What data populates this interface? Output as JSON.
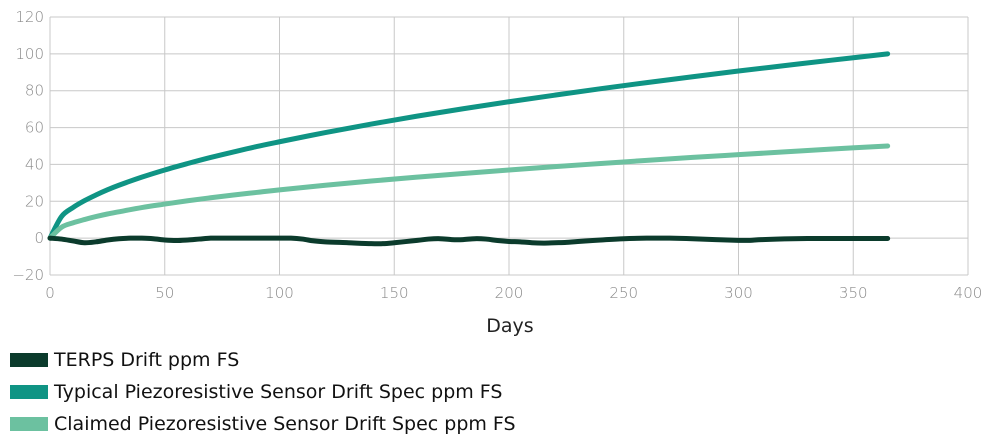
{
  "chart_data": {
    "type": "line",
    "title": "",
    "xlabel": "Days",
    "ylabel": "",
    "xlim": [
      0,
      400
    ],
    "ylim": [
      -20,
      120
    ],
    "xticks": [
      0,
      50,
      100,
      150,
      200,
      250,
      300,
      350,
      400
    ],
    "yticks": [
      -20,
      0,
      20,
      40,
      60,
      80,
      100,
      120
    ],
    "grid": true,
    "legend_position": "bottom-left",
    "series": [
      {
        "name": "TERPS Drift ppm FS",
        "color": "#0b3b2c",
        "x": [
          0,
          5,
          10,
          15,
          20,
          25,
          30,
          35,
          40,
          45,
          50,
          55,
          60,
          65,
          70,
          75,
          80,
          90,
          100,
          105,
          110,
          115,
          120,
          130,
          140,
          145,
          150,
          160,
          165,
          170,
          175,
          180,
          185,
          190,
          195,
          200,
          205,
          210,
          215,
          220,
          225,
          230,
          240,
          250,
          260,
          270,
          280,
          290,
          300,
          305,
          310,
          320,
          330,
          340,
          350,
          360,
          365
        ],
        "y": [
          0,
          -0.5,
          -1.5,
          -2.5,
          -2,
          -1,
          -0.3,
          0,
          0,
          -0.3,
          -1,
          -1.3,
          -1,
          -0.5,
          0,
          0,
          0,
          0,
          0,
          0,
          -0.5,
          -1.5,
          -2,
          -2.5,
          -3,
          -3,
          -2.5,
          -1.2,
          -0.5,
          -0.3,
          -0.8,
          -0.8,
          -0.3,
          -0.5,
          -1.3,
          -1.8,
          -2,
          -2.5,
          -2.7,
          -2.5,
          -2.3,
          -1.8,
          -1,
          -0.3,
          0,
          0,
          -0.3,
          -0.8,
          -1.2,
          -1.2,
          -0.8,
          -0.4,
          -0.2,
          -0.2,
          -0.2,
          -0.2,
          -0.2
        ]
      },
      {
        "name": "Typical Piezoresistive Sensor Drift Spec ppm FS",
        "color": "#0f9484",
        "x": [
          0,
          5,
          10,
          15,
          20,
          25,
          30,
          40,
          50,
          60,
          70,
          80,
          90,
          100,
          120,
          140,
          160,
          180,
          200,
          220,
          240,
          260,
          280,
          300,
          320,
          340,
          365
        ],
        "y": [
          0,
          11.7,
          16.6,
          20.3,
          23.4,
          26.2,
          28.7,
          33.1,
          37.0,
          40.5,
          43.8,
          46.8,
          49.7,
          52.3,
          57.3,
          61.9,
          66.2,
          70.2,
          74.0,
          77.6,
          81.1,
          84.4,
          87.6,
          90.7,
          93.6,
          96.5,
          100
        ]
      },
      {
        "name": "Claimed Piezoresistive Sensor Drift Spec ppm FS",
        "color": "#6cc1a0",
        "x": [
          0,
          5,
          10,
          15,
          20,
          25,
          30,
          40,
          50,
          60,
          70,
          80,
          90,
          100,
          120,
          140,
          160,
          180,
          200,
          220,
          240,
          260,
          280,
          300,
          320,
          340,
          365
        ],
        "y": [
          0,
          5.9,
          8.3,
          10.1,
          11.7,
          13.1,
          14.3,
          16.6,
          18.5,
          20.3,
          21.9,
          23.4,
          24.8,
          26.2,
          28.7,
          31.0,
          33.1,
          35.1,
          37.0,
          38.8,
          40.5,
          42.2,
          43.8,
          45.3,
          46.8,
          48.3,
          50
        ]
      }
    ]
  }
}
